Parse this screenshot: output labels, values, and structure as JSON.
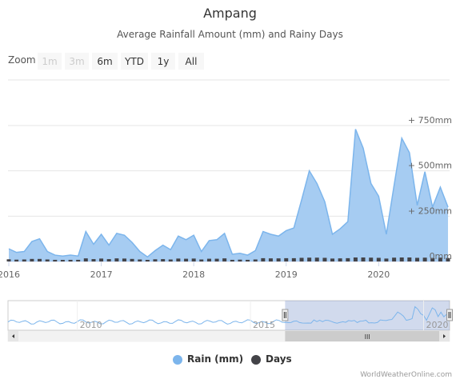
{
  "chart_data": {
    "type": "area",
    "title": "Ampang",
    "subtitle": "Average Rainfall Amount (mm) and Rainy Days",
    "zoom": {
      "label": "Zoom",
      "buttons": [
        {
          "label": "1m",
          "enabled": false
        },
        {
          "label": "3m",
          "enabled": false
        },
        {
          "label": "6m",
          "enabled": true
        },
        {
          "label": "YTD",
          "enabled": true
        },
        {
          "label": "1y",
          "enabled": true
        },
        {
          "label": "All",
          "enabled": true
        }
      ]
    },
    "x_ticks": [
      "2016",
      "2017",
      "2018",
      "2019",
      "2020"
    ],
    "y_ticks": [
      {
        "value": 0,
        "label": "0mm"
      },
      {
        "value": 250,
        "label": "+ 250mm"
      },
      {
        "value": 500,
        "label": "+ 500mm"
      },
      {
        "value": 750,
        "label": "+ 750mm"
      }
    ],
    "x_range": [
      2016.0,
      2020.75
    ],
    "y_range": [
      0,
      750
    ],
    "series": [
      {
        "name": "Rain (mm)",
        "color": "#7cb5ec",
        "x": [
          2016.0,
          2016.083,
          2016.167,
          2016.25,
          2016.333,
          2016.417,
          2016.5,
          2016.583,
          2016.667,
          2016.75,
          2016.833,
          2016.917,
          2017.0,
          2017.083,
          2017.167,
          2017.25,
          2017.333,
          2017.417,
          2017.5,
          2017.583,
          2017.667,
          2017.75,
          2017.833,
          2017.917,
          2018.0,
          2018.083,
          2018.167,
          2018.25,
          2018.333,
          2018.417,
          2018.5,
          2018.583,
          2018.667,
          2018.75,
          2018.833,
          2018.917,
          2019.0,
          2019.083,
          2019.167,
          2019.25,
          2019.333,
          2019.417,
          2019.5,
          2019.583,
          2019.667,
          2019.75,
          2019.833,
          2019.917,
          2020.0,
          2020.083,
          2020.167,
          2020.25,
          2020.333,
          2020.417,
          2020.5,
          2020.583,
          2020.667,
          2020.75
        ],
        "y": [
          70,
          50,
          55,
          110,
          125,
          55,
          35,
          30,
          35,
          30,
          165,
          95,
          150,
          90,
          155,
          145,
          105,
          55,
          25,
          60,
          90,
          65,
          140,
          120,
          145,
          55,
          115,
          120,
          155,
          40,
          45,
          35,
          60,
          165,
          150,
          140,
          170,
          185,
          340,
          500,
          430,
          330,
          150,
          180,
          220,
          730,
          625,
          430,
          360,
          150,
          420,
          680,
          600,
          310,
          495,
          300,
          410,
          300
        ]
      },
      {
        "name": "Days",
        "color": "#434348",
        "x": [
          2016.0,
          2016.083,
          2016.167,
          2016.25,
          2016.333,
          2016.417,
          2016.5,
          2016.583,
          2016.667,
          2016.75,
          2016.833,
          2016.917,
          2017.0,
          2017.083,
          2017.167,
          2017.25,
          2017.333,
          2017.417,
          2017.5,
          2017.583,
          2017.667,
          2017.75,
          2017.833,
          2017.917,
          2018.0,
          2018.083,
          2018.167,
          2018.25,
          2018.333,
          2018.417,
          2018.5,
          2018.583,
          2018.667,
          2018.75,
          2018.833,
          2018.917,
          2019.0,
          2019.083,
          2019.167,
          2019.25,
          2019.333,
          2019.417,
          2019.5,
          2019.583,
          2019.667,
          2019.75,
          2019.833,
          2019.917,
          2020.0,
          2020.083,
          2020.167,
          2020.25,
          2020.333,
          2020.417,
          2020.5,
          2020.583,
          2020.667,
          2020.75
        ],
        "y": [
          12,
          10,
          11,
          14,
          14,
          11,
          9,
          8,
          9,
          9,
          17,
          13,
          16,
          13,
          17,
          16,
          14,
          11,
          8,
          12,
          13,
          11,
          16,
          15,
          16,
          11,
          15,
          15,
          17,
          9,
          10,
          9,
          11,
          18,
          17,
          17,
          18,
          18,
          20,
          21,
          21,
          20,
          16,
          17,
          18,
          22,
          22,
          21,
          20,
          16,
          21,
          22,
          22,
          20,
          21,
          19,
          21,
          19
        ],
        "scale_note": "days per month"
      }
    ],
    "navigator": {
      "labels": [
        "2010",
        "2015",
        "2020"
      ],
      "range": [
        2008.0,
        2020.75
      ],
      "selected": [
        2016.0,
        2020.75
      ]
    },
    "legend": [
      {
        "name": "Rain (mm)",
        "color": "#7cb5ec"
      },
      {
        "name": "Days",
        "color": "#434348"
      }
    ],
    "legend_position": "bottom-center",
    "credits": "WorldWeatherOnline.com",
    "scrollbar_grip": "III"
  }
}
